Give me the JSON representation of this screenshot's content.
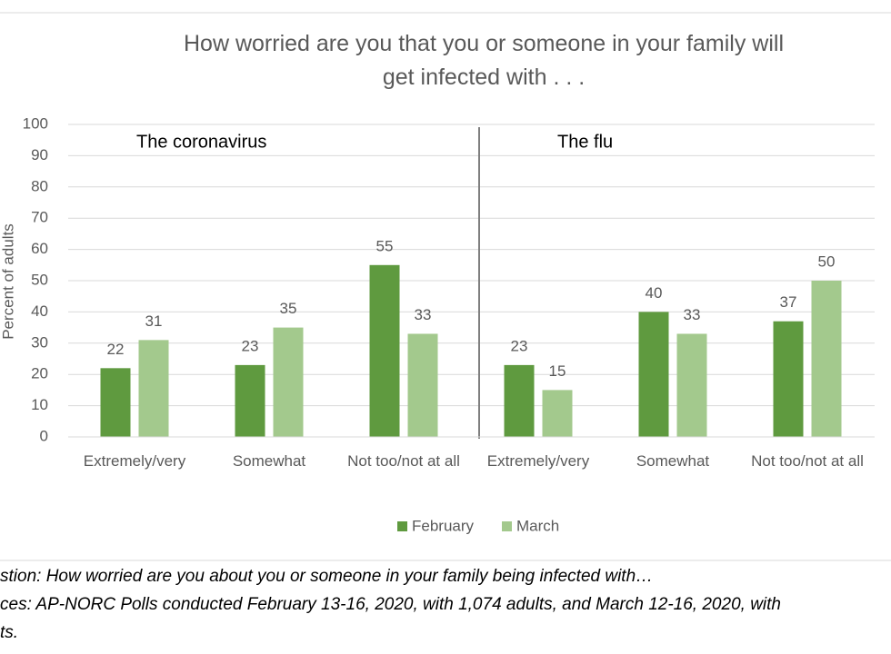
{
  "chart_data": {
    "type": "bar",
    "title": "How worried are you that you or someone in your family will get infected with . . .",
    "ylabel": "Percent of adults",
    "panels": [
      {
        "title": "The coronavirus",
        "categories": [
          "Extremely/very",
          "Somewhat",
          "Not too/not at all"
        ]
      },
      {
        "title": "The flu",
        "categories": [
          "Extremely/very",
          "Somewhat",
          "Not too/not at all"
        ]
      }
    ],
    "series": [
      {
        "name": "February",
        "color": "#5f9a3f",
        "values": [
          22,
          23,
          55,
          23,
          40,
          37
        ]
      },
      {
        "name": "March",
        "color": "#a3c98d",
        "values": [
          31,
          35,
          33,
          15,
          33,
          50
        ]
      }
    ],
    "ylim": [
      0,
      100
    ],
    "yticks": [
      0,
      10,
      20,
      30,
      40,
      50,
      60,
      70,
      80,
      90,
      100
    ],
    "grid": true
  },
  "notes": [
    "stion: How worried are you about you or someone in your family being infected with…",
    "ces: AP-NORC Polls conducted February 13-16, 2020, with 1,074 adults, and March 12-16, 2020, with",
    "ts."
  ]
}
